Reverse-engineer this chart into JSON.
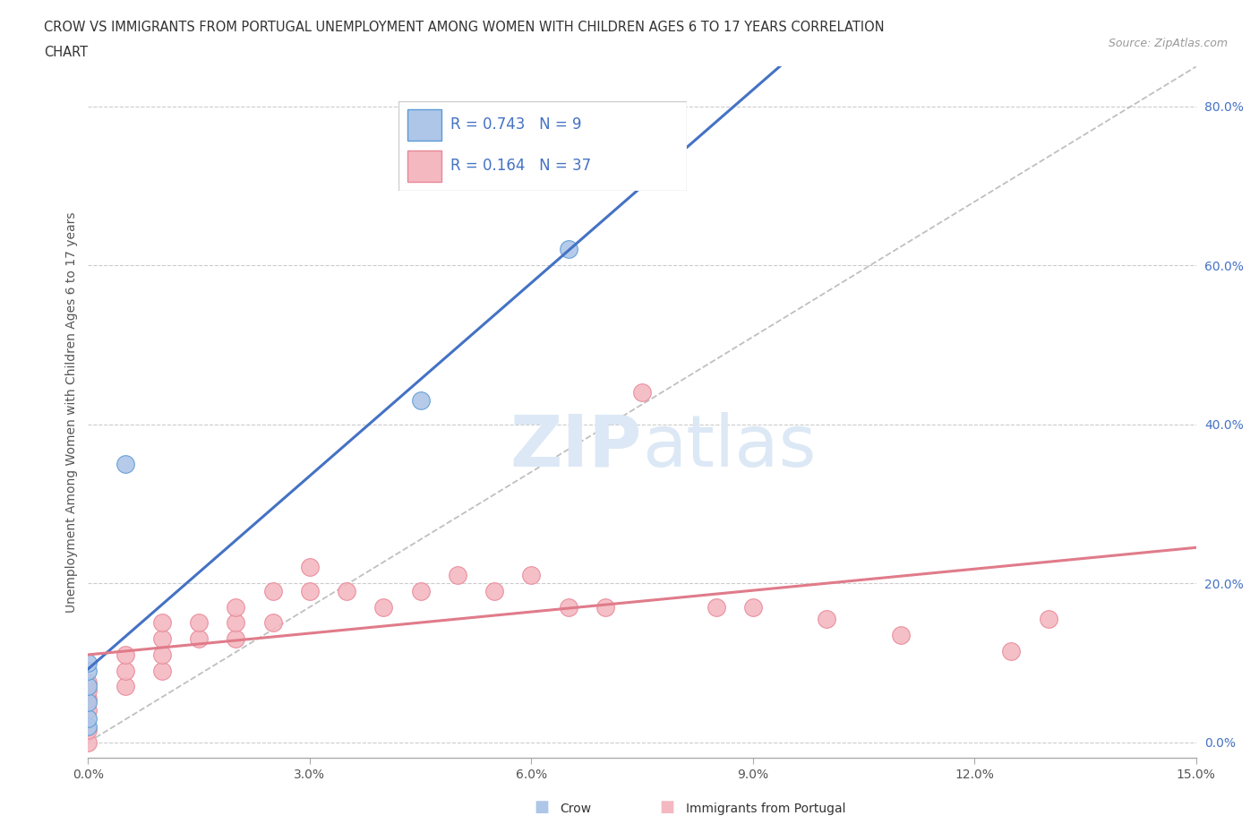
{
  "title_line1": "CROW VS IMMIGRANTS FROM PORTUGAL UNEMPLOYMENT AMONG WOMEN WITH CHILDREN AGES 6 TO 17 YEARS CORRELATION",
  "title_line2": "CHART",
  "source": "Source: ZipAtlas.com",
  "ylabel": "Unemployment Among Women with Children Ages 6 to 17 years",
  "xlim": [
    0.0,
    0.15
  ],
  "ylim": [
    -0.02,
    0.85
  ],
  "xticks": [
    0.0,
    0.03,
    0.06,
    0.09,
    0.12,
    0.15
  ],
  "yticks": [
    0.0,
    0.2,
    0.4,
    0.6,
    0.8
  ],
  "ytick_labels": [
    "0.0%",
    "20.0%",
    "40.0%",
    "60.0%",
    "80.0%"
  ],
  "xtick_labels": [
    "0.0%",
    "3.0%",
    "6.0%",
    "9.0%",
    "12.0%",
    "15.0%"
  ],
  "crow_R": 0.743,
  "crow_N": 9,
  "portugal_R": 0.164,
  "portugal_N": 37,
  "crow_color": "#aec6e8",
  "crow_edge_color": "#5b9bd5",
  "portugal_color": "#f4b8c1",
  "portugal_edge_color": "#e88898",
  "crow_line_color": "#4472c4",
  "portugal_line_color": "#e07b8a",
  "trendline_dashed_color": "#b0b0b0",
  "watermark_color": "#dce8f5",
  "crow_points_x": [
    0.0,
    0.0,
    0.0,
    0.0,
    0.0,
    0.0,
    0.005,
    0.045,
    0.065
  ],
  "crow_points_y": [
    0.02,
    0.03,
    0.05,
    0.07,
    0.09,
    0.1,
    0.35,
    0.43,
    0.62
  ],
  "portugal_points_x": [
    0.0,
    0.0,
    0.0,
    0.0,
    0.0,
    0.0,
    0.005,
    0.005,
    0.005,
    0.01,
    0.01,
    0.01,
    0.01,
    0.015,
    0.015,
    0.02,
    0.02,
    0.02,
    0.025,
    0.025,
    0.03,
    0.03,
    0.035,
    0.04,
    0.045,
    0.05,
    0.055,
    0.06,
    0.065,
    0.07,
    0.075,
    0.085,
    0.09,
    0.1,
    0.11,
    0.125,
    0.13
  ],
  "portugal_points_y": [
    0.0,
    0.015,
    0.04,
    0.055,
    0.065,
    0.075,
    0.07,
    0.09,
    0.11,
    0.09,
    0.11,
    0.13,
    0.15,
    0.13,
    0.15,
    0.13,
    0.15,
    0.17,
    0.15,
    0.19,
    0.19,
    0.22,
    0.19,
    0.17,
    0.19,
    0.21,
    0.19,
    0.21,
    0.17,
    0.17,
    0.44,
    0.17,
    0.17,
    0.155,
    0.135,
    0.115,
    0.155
  ]
}
